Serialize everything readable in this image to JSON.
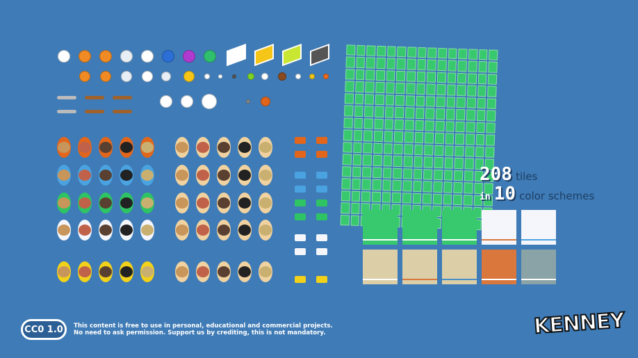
{
  "stats": {
    "tile_count": "208",
    "tile_label": "tiles",
    "in_label": "in",
    "scheme_count": "10",
    "scheme_label": "color schemes"
  },
  "license": {
    "badge": "CC0 1.0",
    "line1": "This content is free to use in personal, educational and commercial projects.",
    "line2": "No need to ask permission. Support us by crediting, this is not mandatory."
  },
  "brand": {
    "logo_text": "KENNEY"
  },
  "colors": {
    "background": "#3f7bb6",
    "field_green": "#38c96e",
    "white": "#f4f6fb",
    "tan": "#dccfa8",
    "orange": "#d9773c",
    "gray": "#8aa3a6",
    "team_orange": "#e2661c",
    "team_blue": "#4aa3e0",
    "team_green": "#2fc463",
    "team_white": "#f4f6fb",
    "team_yellow": "#f2d11b"
  },
  "balls": [
    "#ffffff",
    "#f08a24",
    "#f08a24",
    "#e8eef5",
    "#ffffff",
    "#2b6fd6",
    "#b03ad0",
    "#2fbf6d"
  ],
  "balls2": [
    "#f08a24",
    "#f08a24",
    "#e8eef5",
    "#ffffff",
    "#e8eef5",
    "#f5c518",
    "#ffffff",
    "#ffffff",
    "#555555",
    "#7ed321",
    "#ffffff",
    "#8a4a1e",
    "#ffffff",
    "#f5c518",
    "#f06a1a"
  ]
}
